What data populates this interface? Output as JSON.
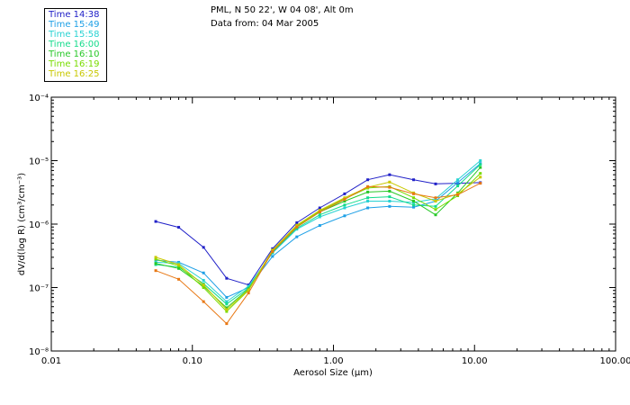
{
  "header": {
    "station": "PML, N 50 22', W 04 08', Alt 0m",
    "date": "Data from: 04 Mar 2005"
  },
  "chart_data": {
    "type": "line",
    "title": "PML, N 50 22', W 04 08', Alt 0m",
    "subtitle": "Data from: 04 Mar 2005",
    "xlabel": "Aerosol Size (μm)",
    "ylabel": "dV/d(log R) (cm³/cm⁻³)",
    "xscale": "log",
    "yscale": "log",
    "xlim": [
      0.01,
      100
    ],
    "ylim": [
      1e-08,
      0.0001
    ],
    "x_ticks": [
      0.01,
      0.1,
      1,
      10,
      100
    ],
    "x_tick_labels": [
      "0.01",
      "0.10",
      "1.00",
      "10.00",
      "100.00"
    ],
    "y_ticks": [
      1e-08,
      1e-07,
      1e-06,
      1e-05,
      0.0001
    ],
    "y_tick_labels": [
      "10⁻⁸",
      "10⁻⁷",
      "10⁻⁶",
      "10⁻⁵",
      "10⁻⁴"
    ],
    "legend_position": "top-left outside",
    "x": [
      0.055,
      0.08,
      0.12,
      0.175,
      0.25,
      0.37,
      0.55,
      0.8,
      1.2,
      1.75,
      2.5,
      3.7,
      5.3,
      7.6,
      11.0
    ],
    "series": [
      {
        "name": "Time 14:38",
        "color": "#2020c8",
        "values": [
          1.1e-06,
          8.9e-07,
          4.3e-07,
          1.4e-07,
          1.1e-07,
          4.1e-07,
          1.05e-06,
          1.8e-06,
          3e-06,
          5e-06,
          6e-06,
          5e-06,
          4.3e-06,
          4.4e-06,
          4.5e-06
        ]
      },
      {
        "name": "Time 15:49",
        "color": "#1ea0e6",
        "values": [
          2.7e-07,
          2.5e-07,
          1.7e-07,
          7e-08,
          1e-07,
          3.1e-07,
          6.3e-07,
          9.5e-07,
          1.35e-06,
          1.8e-06,
          1.9e-06,
          1.85e-06,
          2.3e-06,
          4.5e-06,
          9e-06
        ]
      },
      {
        "name": "Time 15:58",
        "color": "#28d2d2",
        "values": [
          2.5e-07,
          2.4e-07,
          1.3e-07,
          6e-08,
          1.05e-07,
          3.5e-07,
          8.3e-07,
          1.3e-06,
          1.8e-06,
          2.3e-06,
          2.3e-06,
          2.2e-06,
          2.5e-06,
          5e-06,
          1e-05
        ]
      },
      {
        "name": "Time 16:00",
        "color": "#14dc8c",
        "values": [
          2.3e-07,
          2.1e-07,
          1.15e-07,
          5.5e-08,
          9.8e-08,
          3.6e-07,
          8.6e-07,
          1.4e-06,
          2e-06,
          2.6e-06,
          2.7e-06,
          2e-06,
          1.9e-06,
          4e-06,
          8.7e-06
        ]
      },
      {
        "name": "Time 16:10",
        "color": "#28c828",
        "values": [
          2.4e-07,
          2e-07,
          1.05e-07,
          4.8e-08,
          9.5e-08,
          3.7e-07,
          9e-07,
          1.55e-06,
          2.3e-06,
          3.2e-06,
          3.3e-06,
          2.3e-06,
          1.4e-06,
          3.1e-06,
          7.8e-06
        ]
      },
      {
        "name": "Time 16:19",
        "color": "#78dc00",
        "values": [
          2.8e-07,
          2.2e-07,
          1e-07,
          4.2e-08,
          9e-08,
          3.8e-07,
          9.3e-07,
          1.6e-06,
          2.5e-06,
          3.7e-06,
          3.9e-06,
          2.6e-06,
          1.7e-06,
          2.8e-06,
          6.3e-06
        ]
      },
      {
        "name": "Time 16:25",
        "color": "#c8c800",
        "values": [
          3e-07,
          2.3e-07,
          1.1e-07,
          4.5e-08,
          9.2e-08,
          3.9e-07,
          9.6e-07,
          1.65e-06,
          2.6e-06,
          3.8e-06,
          4.6e-06,
          3.1e-06,
          2.3e-06,
          3e-06,
          5.5e-06
        ]
      },
      {
        "name": "",
        "color": "#e87814",
        "values": [
          1.85e-07,
          1.35e-07,
          6e-08,
          2.7e-08,
          8.2e-08,
          3.7e-07,
          9e-07,
          1.55e-06,
          2.45e-06,
          3.9e-06,
          3.8e-06,
          3e-06,
          2.6e-06,
          2.9e-06,
          4.4e-06
        ]
      }
    ]
  }
}
